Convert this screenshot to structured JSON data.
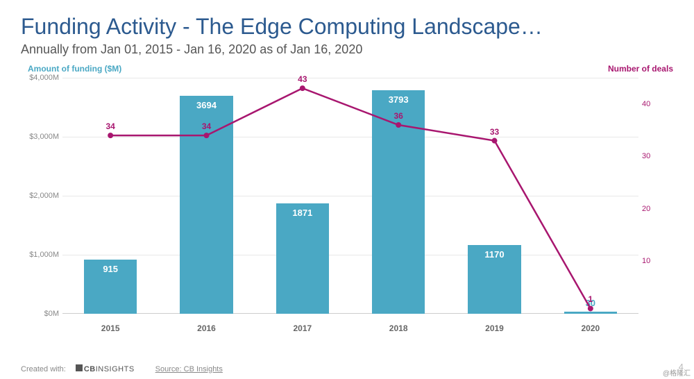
{
  "title": "Funding Activity - The Edge Computing Landscape…",
  "subtitle": "Annually from Jan 01, 2015 - Jan 16, 2020 as of Jan 16, 2020",
  "chart": {
    "type": "bar+line-dual-axis",
    "left_axis": {
      "label": "Amount of funding ($M)",
      "color": "#4aa8c4",
      "min": 0,
      "max": 4000,
      "ticks": [
        0,
        1000,
        2000,
        3000,
        4000
      ],
      "tick_labels": [
        "$0M",
        "$1,000M",
        "$2,000M",
        "$3,000M",
        "$4,000M"
      ]
    },
    "right_axis": {
      "label": "Number of deals",
      "color": "#a8166f",
      "min": 0,
      "max": 45,
      "ticks": [
        10,
        20,
        30,
        40
      ],
      "tick_labels": [
        "10",
        "20",
        "30",
        "40"
      ]
    },
    "categories": [
      "2015",
      "2016",
      "2017",
      "2018",
      "2019",
      "2020"
    ],
    "bars": {
      "values": [
        915,
        3694,
        1871,
        3793,
        1170,
        30
      ],
      "color": "#4aa8c4",
      "label_color_inside": "#ffffff",
      "width_fraction": 0.55
    },
    "line": {
      "values": [
        34,
        34,
        43,
        36,
        33,
        1
      ],
      "color": "#a8166f",
      "stroke_width": 2.5,
      "marker_radius": 4
    },
    "grid_color": "#e8e8e8",
    "background": "#ffffff",
    "xlabel_color": "#666",
    "xlabel_fontsize": 12
  },
  "footer": {
    "created_with": "Created with:",
    "logo_bold": "CB",
    "logo_thin": "INSIGHTS",
    "source": "Source: CB Insights"
  },
  "page_number": "4",
  "watermark": "@格隆汇"
}
